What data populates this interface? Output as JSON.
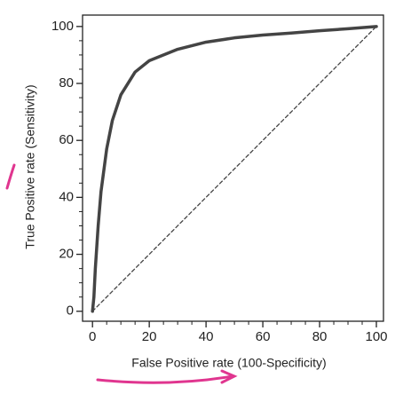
{
  "chart_data": {
    "type": "line",
    "xlabel": "False Positive rate (100-Specificity)",
    "ylabel": "True Positive rate (Sensitivity)",
    "xlim": [
      -3.5,
      102.5
    ],
    "ylim": [
      -3.5,
      104
    ],
    "xticks": [
      0,
      20,
      40,
      60,
      80,
      100
    ],
    "yticks": [
      0,
      20,
      40,
      60,
      80,
      100
    ],
    "xminorticks": [
      5,
      10,
      15,
      25,
      30,
      35,
      45,
      50,
      55,
      65,
      70,
      75,
      85,
      90,
      95
    ],
    "yminorticks": [
      5,
      10,
      15,
      25,
      30,
      35,
      45,
      50,
      55,
      65,
      70,
      75,
      85,
      90,
      95
    ],
    "series": [
      {
        "color": "#444444",
        "width": 3.5,
        "dash": false,
        "x": [
          0,
          0.5,
          1,
          2,
          3,
          5,
          7,
          10,
          15,
          20,
          30,
          40,
          50,
          60,
          70,
          80,
          90,
          100
        ],
        "values": [
          0,
          5,
          15,
          30,
          42,
          57,
          67,
          76,
          84,
          88,
          92,
          94.5,
          96,
          97,
          97.7,
          98.5,
          99.2,
          100
        ]
      },
      {
        "color": "#444444",
        "width": 1.3,
        "dash": true,
        "x": [
          0,
          100
        ],
        "values": [
          0,
          100
        ]
      }
    ]
  }
}
